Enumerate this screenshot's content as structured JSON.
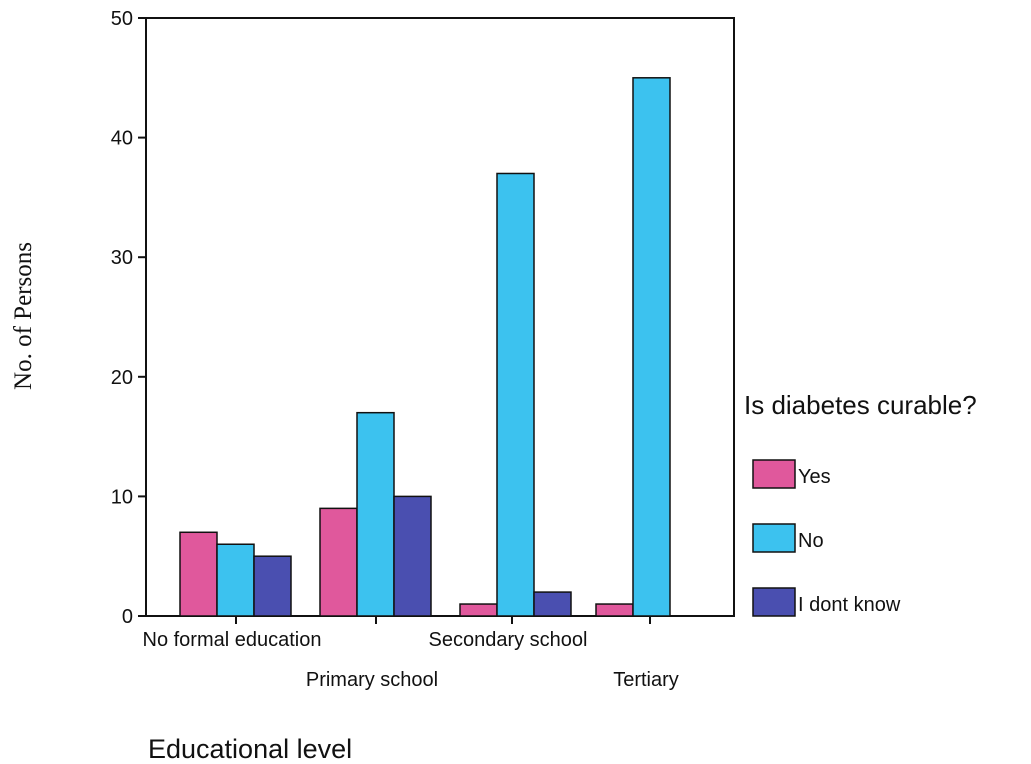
{
  "chart_data": {
    "type": "bar",
    "categories": [
      "No formal education",
      "Primary school",
      "Secondary school",
      "Tertiary"
    ],
    "series": [
      {
        "name": "Yes",
        "color": "#e0589c",
        "values": [
          7,
          9,
          1,
          1
        ]
      },
      {
        "name": "No",
        "color": "#3cc2ef",
        "values": [
          6,
          17,
          37,
          45
        ]
      },
      {
        "name": "I dont know",
        "color": "#4a4fb0",
        "values": [
          5,
          10,
          2,
          0
        ]
      }
    ],
    "xlabel": "Educational level",
    "ylabel": "No. of Persons",
    "ylim": [
      0,
      50
    ],
    "yticks": [
      0,
      10,
      20,
      30,
      40,
      50
    ],
    "legend_title": "Is diabetes curable?",
    "legend_position": "right",
    "grid": false
  }
}
